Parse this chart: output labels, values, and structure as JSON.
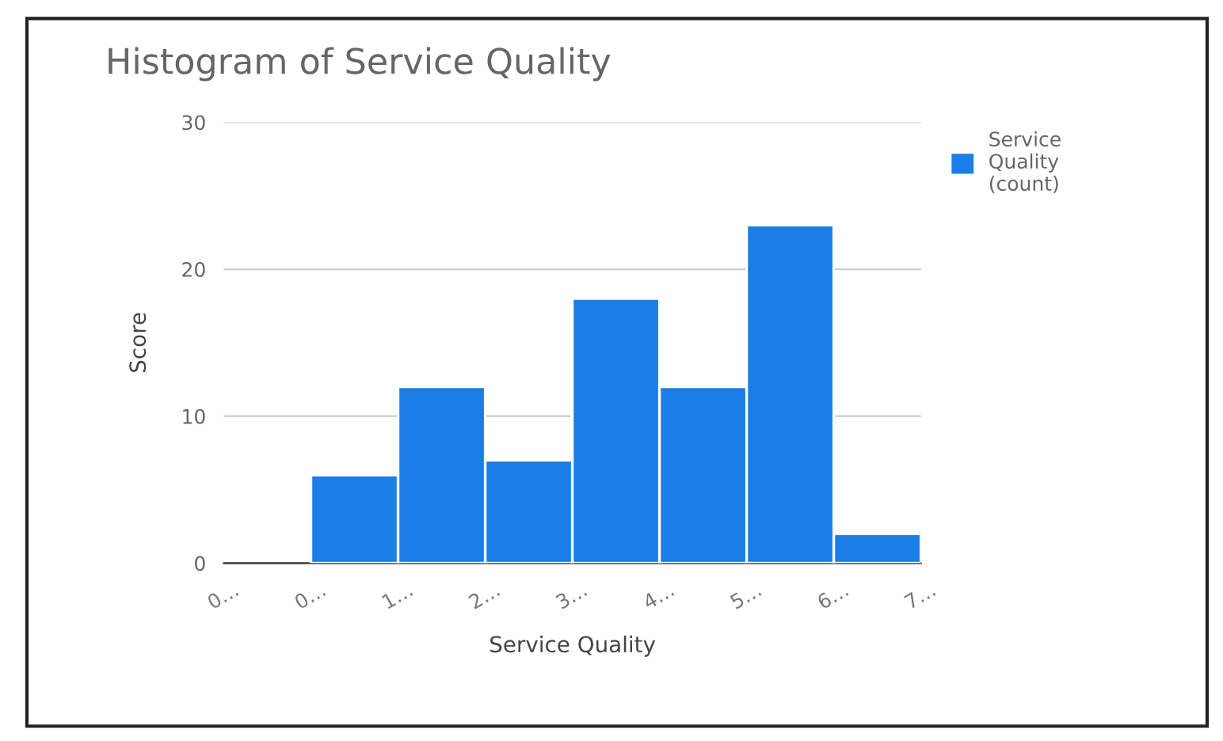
{
  "chart_data": {
    "type": "bar",
    "title": "Histogram of Service Quality",
    "xlabel": "Service Quality",
    "ylabel": "Score",
    "categories": [
      "0…",
      "0…",
      "1…",
      "2…",
      "3…",
      "4…",
      "5…",
      "6…",
      "7…"
    ],
    "series": [
      {
        "name": "Service Quality (count)",
        "color": "#1a7ee8",
        "values": [
          0,
          6,
          12,
          7,
          18,
          12,
          23,
          2,
          null
        ]
      }
    ],
    "ylim": [
      0,
      30
    ],
    "yticks": [
      0,
      10,
      20,
      30
    ],
    "grid": "y",
    "legend": "top right"
  }
}
